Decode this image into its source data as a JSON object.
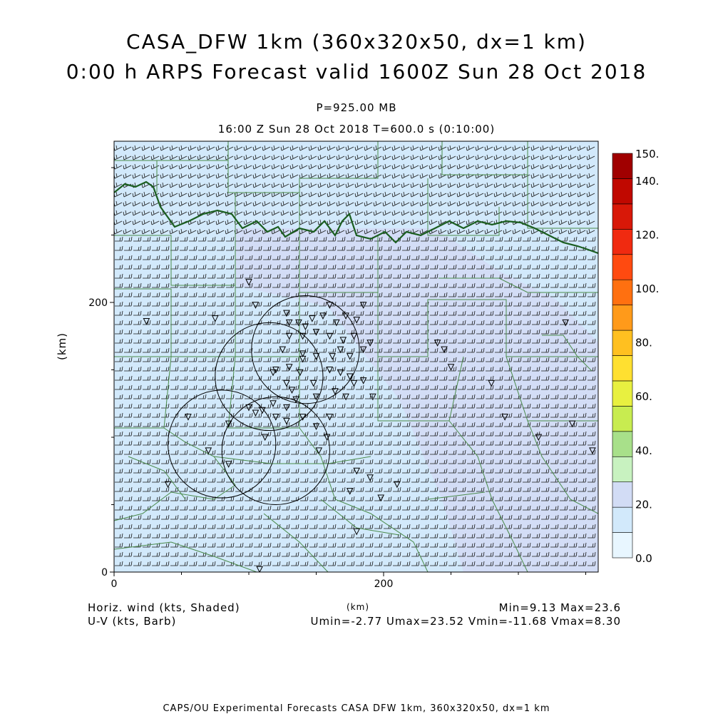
{
  "title_line1": "CASA_DFW 1km (360x320x50, dx=1 km)",
  "title_line2": "0:00 h ARPS Forecast valid 1600Z Sun 28 Oct 2018",
  "pressure_label": "P=925.00 MB",
  "time_label": "16:00 Z Sun 28 Oct 2018    T=600.0 s (0:10:00)",
  "y_axis_label": "(km)",
  "x_axis_label": "(km)",
  "x_ticks": [
    "0",
    "200"
  ],
  "y_ticks": [
    "0",
    "200"
  ],
  "colorbar": {
    "labels": [
      "0.0",
      "20.",
      "40.",
      "60.",
      "80.",
      "100.",
      "120.",
      "140.",
      "150."
    ],
    "colors": [
      "#e8f6ff",
      "#d2e9fb",
      "#d2dcf5",
      "#c8f2c0",
      "#a8e08a",
      "#c8ec50",
      "#e8f040",
      "#ffe030",
      "#ffc020",
      "#ff9a1a",
      "#ff7010",
      "#ff4a10",
      "#f02a10",
      "#d81808",
      "#c00800",
      "#a00000"
    ]
  },
  "legend_left": {
    "line1": "Horiz. wind (kts, Shaded)",
    "line2": "U-V (kts, Barb)"
  },
  "legend_right": {
    "line1": "Min=9.13 Max=23.6",
    "line2": "Umin=-2.77 Umax=23.52 Vmin=-11.68 Vmax=8.30"
  },
  "footer": "CAPS/OU Experimental Forecasts  CASA DFW 1km, 360x320x50, dx=1 km",
  "radar_ranges": [
    {
      "cx": 142,
      "cy": 165,
      "r": 40
    },
    {
      "cx": 115,
      "cy": 145,
      "r": 40
    },
    {
      "cx": 80,
      "cy": 95,
      "r": 40
    },
    {
      "cx": 120,
      "cy": 90,
      "r": 40
    }
  ],
  "stations": [
    [
      24,
      186
    ],
    [
      75,
      188
    ],
    [
      100,
      215
    ],
    [
      105,
      198
    ],
    [
      128,
      192
    ],
    [
      130,
      185
    ],
    [
      137,
      185
    ],
    [
      142,
      182
    ],
    [
      147,
      188
    ],
    [
      155,
      190
    ],
    [
      160,
      198
    ],
    [
      165,
      185
    ],
    [
      172,
      190
    ],
    [
      180,
      187
    ],
    [
      185,
      198
    ],
    [
      190,
      170
    ],
    [
      130,
      175
    ],
    [
      140,
      175
    ],
    [
      150,
      178
    ],
    [
      160,
      175
    ],
    [
      170,
      172
    ],
    [
      178,
      175
    ],
    [
      185,
      165
    ],
    [
      175,
      160
    ],
    [
      168,
      165
    ],
    [
      162,
      160
    ],
    [
      150,
      160
    ],
    [
      140,
      162
    ],
    [
      125,
      165
    ],
    [
      118,
      148
    ],
    [
      120,
      150
    ],
    [
      130,
      152
    ],
    [
      140,
      158
    ],
    [
      138,
      148
    ],
    [
      128,
      140
    ],
    [
      132,
      135
    ],
    [
      148,
      140
    ],
    [
      160,
      150
    ],
    [
      168,
      148
    ],
    [
      175,
      145
    ],
    [
      185,
      142
    ],
    [
      178,
      140
    ],
    [
      192,
      130
    ],
    [
      172,
      130
    ],
    [
      164,
      134
    ],
    [
      150,
      130
    ],
    [
      135,
      128
    ],
    [
      128,
      122
    ],
    [
      120,
      115
    ],
    [
      118,
      125
    ],
    [
      110,
      120
    ],
    [
      100,
      122
    ],
    [
      105,
      118
    ],
    [
      112,
      100
    ],
    [
      128,
      112
    ],
    [
      140,
      115
    ],
    [
      150,
      108
    ],
    [
      158,
      100
    ],
    [
      160,
      115
    ],
    [
      152,
      90
    ],
    [
      85,
      110
    ],
    [
      55,
      115
    ],
    [
      40,
      65
    ],
    [
      70,
      90
    ],
    [
      85,
      80
    ],
    [
      175,
      60
    ],
    [
      180,
      75
    ],
    [
      190,
      70
    ],
    [
      210,
      65
    ],
    [
      245,
      165
    ],
    [
      250,
      152
    ],
    [
      280,
      140
    ],
    [
      240,
      170
    ],
    [
      290,
      115
    ],
    [
      315,
      100
    ],
    [
      340,
      110
    ],
    [
      355,
      90
    ],
    [
      365,
      148
    ],
    [
      335,
      185
    ],
    [
      380,
      218
    ],
    [
      198,
      55
    ],
    [
      180,
      30
    ],
    [
      108,
      2
    ]
  ]
}
